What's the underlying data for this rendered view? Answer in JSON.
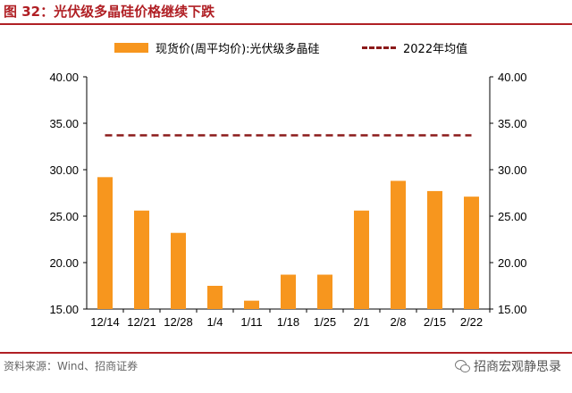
{
  "title": "图 32：光伏级多晶硅价格继续下跌",
  "legend": {
    "bar_label": "现货价(周平均价):光伏级多晶硅",
    "line_label": "2022年均值"
  },
  "colors": {
    "bar": "#f7961e",
    "line": "#8b1a1a",
    "accent": "#b01f24"
  },
  "chart_data": {
    "type": "bar",
    "categories": [
      "12/14",
      "12/21",
      "12/28",
      "1/4",
      "1/11",
      "1/18",
      "1/25",
      "2/1",
      "2/8",
      "2/15",
      "2/22"
    ],
    "series": [
      {
        "name": "现货价(周平均价):光伏级多晶硅",
        "type": "bar",
        "values": [
          29.2,
          25.6,
          23.2,
          17.5,
          15.9,
          18.7,
          18.7,
          25.6,
          28.8,
          27.7,
          27.1
        ]
      },
      {
        "name": "2022年均值",
        "type": "line",
        "style": "dashed",
        "values": [
          33.7,
          33.7,
          33.7,
          33.7,
          33.7,
          33.7,
          33.7,
          33.7,
          33.7,
          33.7,
          33.7
        ]
      }
    ],
    "ylim": [
      15,
      40
    ],
    "yticks": [
      "15.00",
      "20.00",
      "25.00",
      "30.00",
      "35.00",
      "40.00"
    ],
    "y2ticks": [
      "15.00",
      "20.00",
      "25.00",
      "30.00",
      "35.00",
      "40.00"
    ],
    "grid": false,
    "legend_position": "top"
  },
  "footer": {
    "source": "资料来源：Wind、招商证券",
    "brand": "招商宏观静思录"
  }
}
